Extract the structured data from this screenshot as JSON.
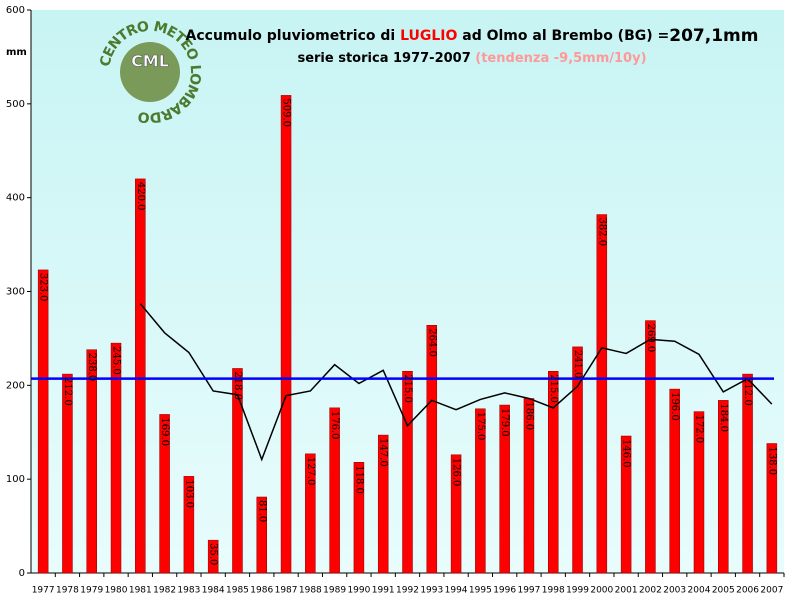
{
  "chart_data": {
    "type": "bar",
    "title_parts": [
      "Accumulo pluviometrico di ",
      "LUGLIO",
      " ad Olmo al Brembo (BG) =",
      "207,1mm"
    ],
    "subtitle_parts": [
      "serie storica 1977-2007 ",
      "(tendenza -9,5mm/10y)"
    ],
    "y_label": "mm",
    "logo_ring": "CENTRO METEO LOMBARDO",
    "logo_text": "CML",
    "categories": [
      "1977",
      "1978",
      "1979",
      "1980",
      "1981",
      "1982",
      "1983",
      "1984",
      "1985",
      "1986",
      "1987",
      "1988",
      "1989",
      "1990",
      "1991",
      "1992",
      "1993",
      "1994",
      "1995",
      "1996",
      "1997",
      "1998",
      "1999",
      "2000",
      "2001",
      "2002",
      "2003",
      "2004",
      "2005",
      "2006",
      "2007"
    ],
    "values": [
      323,
      212,
      238,
      245,
      420,
      169,
      103,
      35,
      218,
      81,
      509,
      127,
      176,
      118,
      147,
      215,
      264,
      126,
      175,
      179,
      186,
      215,
      241,
      382,
      146,
      269,
      196,
      172,
      184,
      212,
      138
    ],
    "value_labels": [
      "323.0",
      "212.0",
      "238.0",
      "245.0",
      "420.0",
      "169.0",
      "103.0",
      "35.0",
      "218.0",
      "81.0",
      "509.0",
      "127.0",
      "176.0",
      "118.0",
      "147.0",
      "215.0",
      "264.0",
      "126.0",
      "175.0",
      "179.0",
      "186.0",
      "215.0",
      "241.0",
      "382.0",
      "146.0",
      "269.0",
      "196.0",
      "172.0",
      "184.0",
      "212.0",
      "138.0"
    ],
    "color": "#ff0000",
    "series": [
      {
        "color": "#000000",
        "values": [
          null,
          null,
          null,
          null,
          287,
          256,
          235,
          194,
          190,
          121,
          189,
          194,
          222,
          202,
          216,
          157,
          184,
          174,
          185,
          192,
          186,
          176,
          199,
          240,
          234,
          249,
          247,
          233,
          193,
          207,
          180
        ]
      }
    ],
    "mean": 207.1,
    "mean_color": "#0000ff",
    "ylim": [
      0,
      600
    ],
    "yticks": [
      0,
      100,
      200,
      300,
      400,
      500,
      600
    ],
    "grid": false
  }
}
